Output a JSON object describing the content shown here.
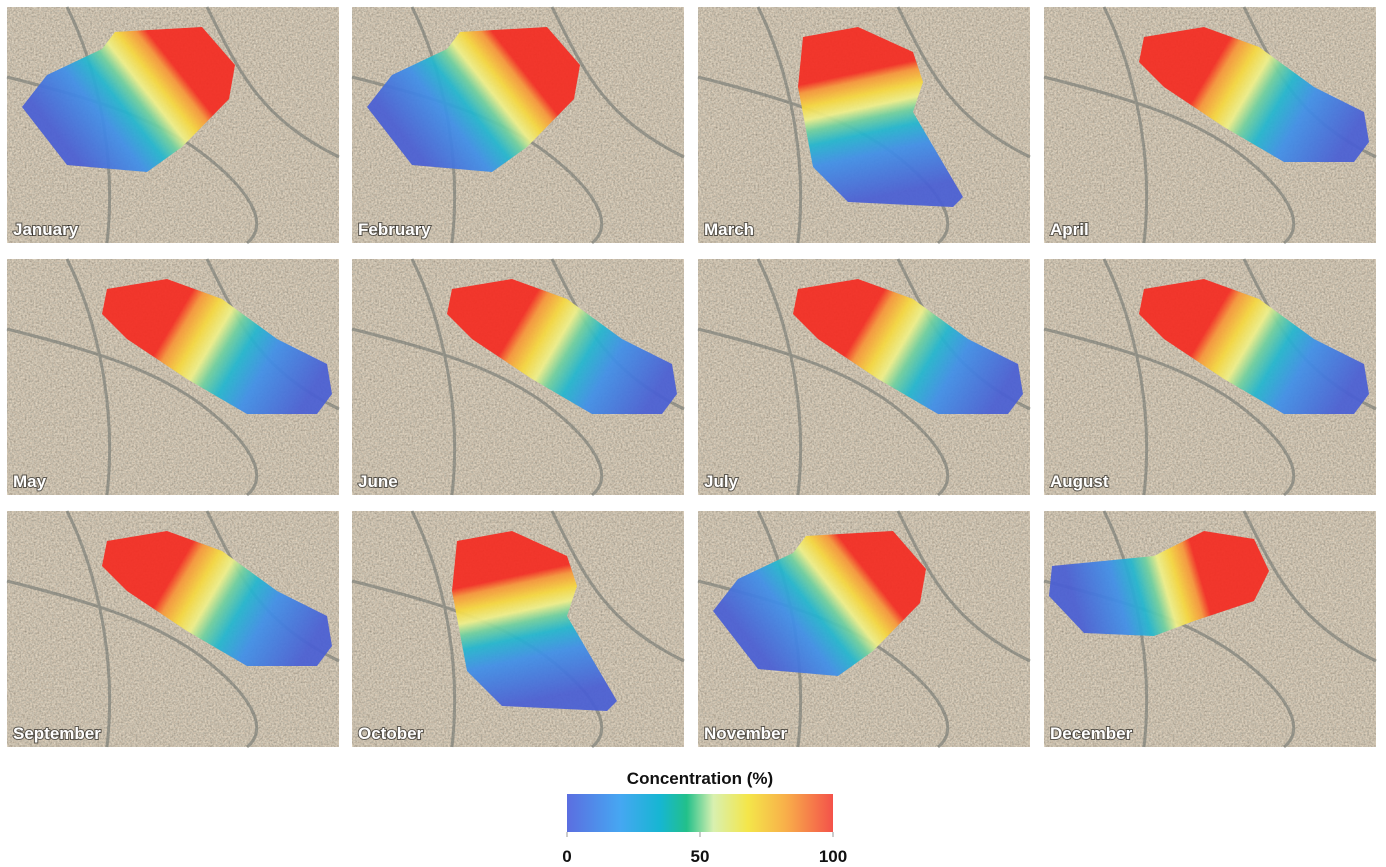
{
  "panels": [
    {
      "label": "January"
    },
    {
      "label": "February"
    },
    {
      "label": "March"
    },
    {
      "label": "April"
    },
    {
      "label": "May"
    },
    {
      "label": "June"
    },
    {
      "label": "July"
    },
    {
      "label": "August"
    },
    {
      "label": "September"
    },
    {
      "label": "October"
    },
    {
      "label": "November"
    },
    {
      "label": "December"
    }
  ],
  "colorbar": {
    "title": "Concentration (%)",
    "range": [
      0,
      100
    ],
    "ticks": [
      0,
      50,
      100
    ]
  }
}
